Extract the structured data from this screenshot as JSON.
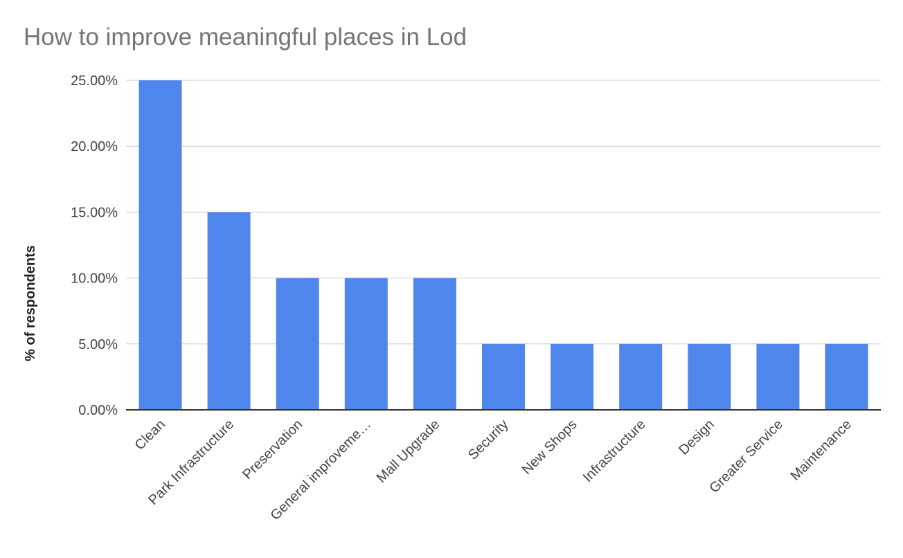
{
  "chart_data": {
    "type": "bar",
    "title": "How to improve meaningful places in Lod",
    "xlabel": "",
    "ylabel": "% of respondents",
    "categories": [
      "Clean",
      "Park Infrastructure",
      "Preservation",
      "General improveme…",
      "Mall Upgrade",
      "Security",
      "New Shops",
      "Infrastructure",
      "Design",
      "Greater Service",
      "Maintenance"
    ],
    "series": [
      {
        "values": [
          0.25,
          0.15,
          0.1,
          0.1,
          0.1,
          0.05,
          0.05,
          0.05,
          0.05,
          0.05,
          0.05
        ]
      }
    ],
    "ylim": [
      0,
      0.25
    ],
    "yticks": [
      0,
      0.05,
      0.1,
      0.15,
      0.2,
      0.25
    ],
    "ytick_labels": [
      "0.00%",
      "5.00%",
      "10.00%",
      "15.00%",
      "20.00%",
      "25.00%"
    ],
    "grid": true,
    "legend": "none",
    "bar_color": "#4F86EC",
    "grid_color": "#cccccc",
    "axis_color": "#333333"
  }
}
